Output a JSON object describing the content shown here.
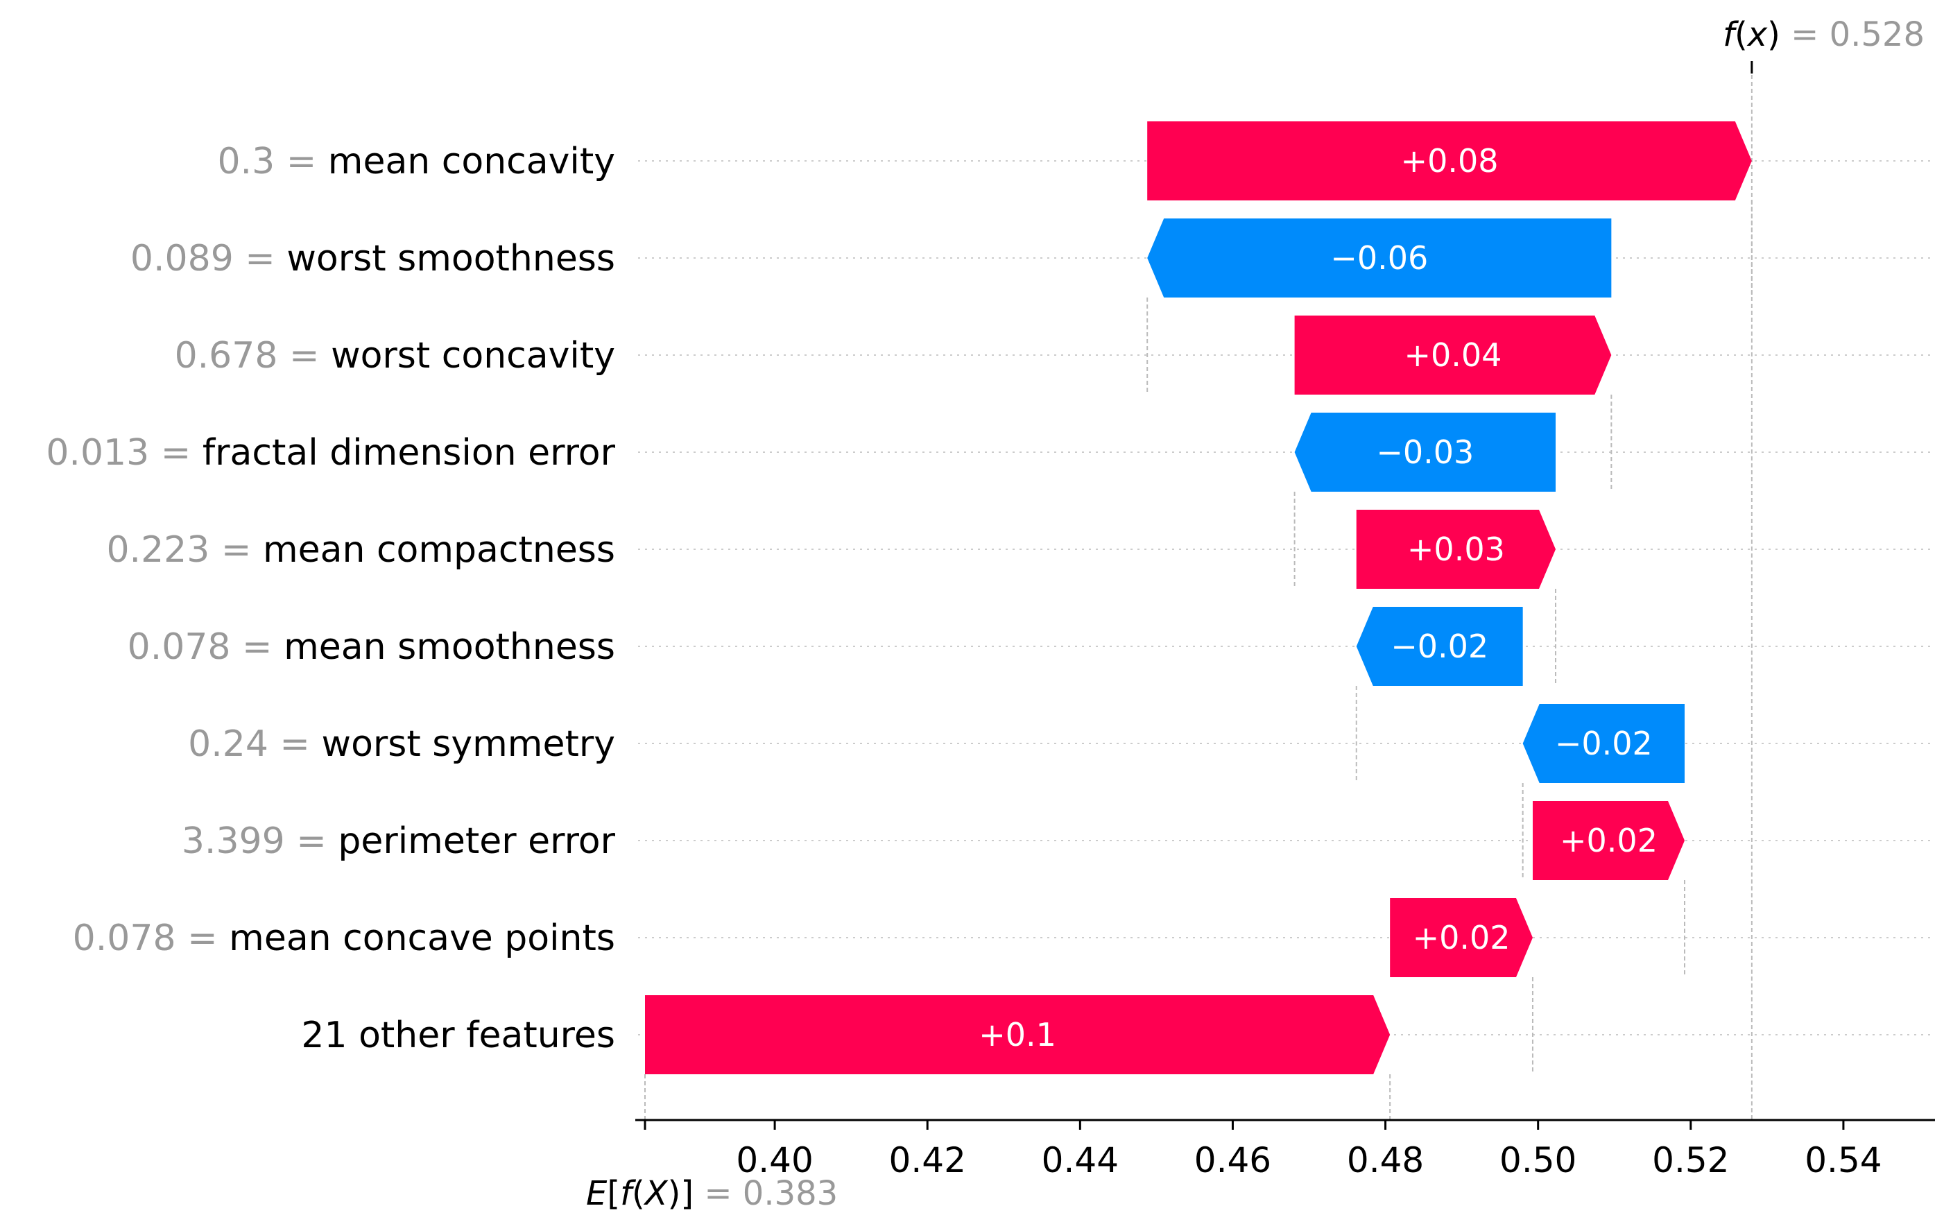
{
  "chart_data": {
    "type": "waterfall",
    "base_value": 0.383,
    "base_value_label": "0.383",
    "output_value": 0.528,
    "output_value_label": "0.528",
    "output_label_f": "f",
    "output_label_x": "x",
    "base_label_E": "E",
    "base_label_f": "f",
    "base_label_X": "X",
    "xlim": [
      0.383,
      0.552
    ],
    "xticks": [
      0.4,
      0.42,
      0.44,
      0.46,
      0.48,
      0.5,
      0.52,
      0.54
    ],
    "xtick_labels": [
      "0.40",
      "0.42",
      "0.44",
      "0.46",
      "0.48",
      "0.50",
      "0.52",
      "0.54"
    ],
    "features": [
      {
        "value": "0.3",
        "name": "mean concavity",
        "start": 0.4488,
        "end": 0.528,
        "label": "+0.08"
      },
      {
        "value": "0.089",
        "name": "worst smoothness",
        "start": 0.5096,
        "end": 0.4488,
        "label": "−0.06"
      },
      {
        "value": "0.678",
        "name": "worst concavity",
        "start": 0.4681,
        "end": 0.5096,
        "label": "+0.04"
      },
      {
        "value": "0.013",
        "name": "fractal dimension error",
        "start": 0.5023,
        "end": 0.4681,
        "label": "−0.03"
      },
      {
        "value": "0.223",
        "name": "mean compactness",
        "start": 0.4762,
        "end": 0.5023,
        "label": "+0.03"
      },
      {
        "value": "0.078",
        "name": "mean smoothness",
        "start": 0.498,
        "end": 0.4762,
        "label": "−0.02"
      },
      {
        "value": "0.24",
        "name": "worst symmetry",
        "start": 0.5192,
        "end": 0.498,
        "label": "−0.02"
      },
      {
        "value": "3.399",
        "name": "perimeter error",
        "start": 0.4993,
        "end": 0.5192,
        "label": "+0.02"
      },
      {
        "value": "0.078",
        "name": "mean concave points",
        "start": 0.4806,
        "end": 0.4993,
        "label": "+0.02"
      },
      {
        "value": "",
        "name": "21 other features",
        "start": 0.383,
        "end": 0.4806,
        "label": "+0.1"
      }
    ],
    "colors": {
      "positive": "#ff0051",
      "negative": "#008bfb",
      "value_text": "#999999",
      "grid": "#cccccc"
    }
  }
}
